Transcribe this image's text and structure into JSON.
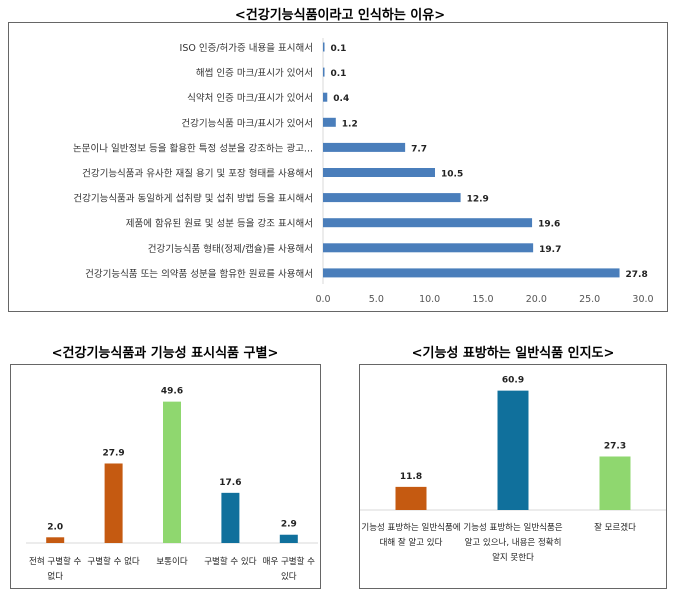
{
  "chart_data": [
    {
      "type": "bar",
      "orientation": "horizontal",
      "title": "<건강기능식품이라고 인식하는 이유>",
      "categories": [
        "ISO 인증/허가증 내용을 표시해서",
        "해썹 인증 마크/표시가 있어서",
        "식약처 인증 마크/표시가 있어서",
        "건강기능식품 마크/표시가 있어서",
        "논문이나 일반정보 등을 활용한 특정 성분을 강조하는 광고...",
        "건강기능식품과 유사한 재질 용기 및 포장 형태를 사용해서",
        "건강기능식품과 동일하게 섭취량 및 섭취 방법 등을 표시해서",
        "제품에 함유된 원료 및 성분 등을 강조 표시해서",
        "건강기능식품 형태(정제/캡슐)를 사용해서",
        "건강기능식품 또는 의약품 성분을 함유한 원료를 사용해서"
      ],
      "values": [
        0.1,
        0.1,
        0.4,
        1.2,
        7.7,
        10.5,
        12.9,
        19.6,
        19.7,
        27.8
      ],
      "value_labels": [
        "0.1",
        "0.1",
        "0.4",
        "1.2",
        "7.7",
        "10.5",
        "12.9",
        "19.6",
        "19.7",
        "27.8"
      ],
      "xlim": [
        0,
        30
      ],
      "ticks": [
        "0.0",
        "5.0",
        "10.0",
        "15.0",
        "20.0",
        "25.0",
        "30.0"
      ],
      "color": "#4a7ebb"
    },
    {
      "type": "bar",
      "title": "<건강기능식품과 기능성 표시식품 구별>",
      "categories": [
        [
          "전혀 구별할 수",
          "없다"
        ],
        [
          "구별할 수 없다"
        ],
        [
          "보통이다"
        ],
        [
          "구별할 수 있다"
        ],
        [
          "매우 구별할 수",
          "있다"
        ]
      ],
      "values": [
        2.0,
        27.9,
        49.6,
        17.6,
        2.9
      ],
      "value_labels": [
        "2.0",
        "27.9",
        "49.6",
        "17.6",
        "2.9"
      ],
      "colors": [
        "#c55a11",
        "#c55a11",
        "#8fd76f",
        "#10709c",
        "#10709c"
      ]
    },
    {
      "type": "bar",
      "title": "<기능성 표방하는 일반식품 인지도>",
      "categories": [
        [
          "기능성 표방하는 일반식품에",
          "대해 잘 알고 있다"
        ],
        [
          "기능성 표방하는 일반식품은",
          "알고 있으나, 내용은 정확히",
          "알지 못한다"
        ],
        [
          "잘 모르겠다"
        ]
      ],
      "values": [
        11.8,
        60.9,
        27.3
      ],
      "value_labels": [
        "11.8",
        "60.9",
        "27.3"
      ],
      "colors": [
        "#c55a11",
        "#10709c",
        "#8fd76f"
      ]
    }
  ]
}
